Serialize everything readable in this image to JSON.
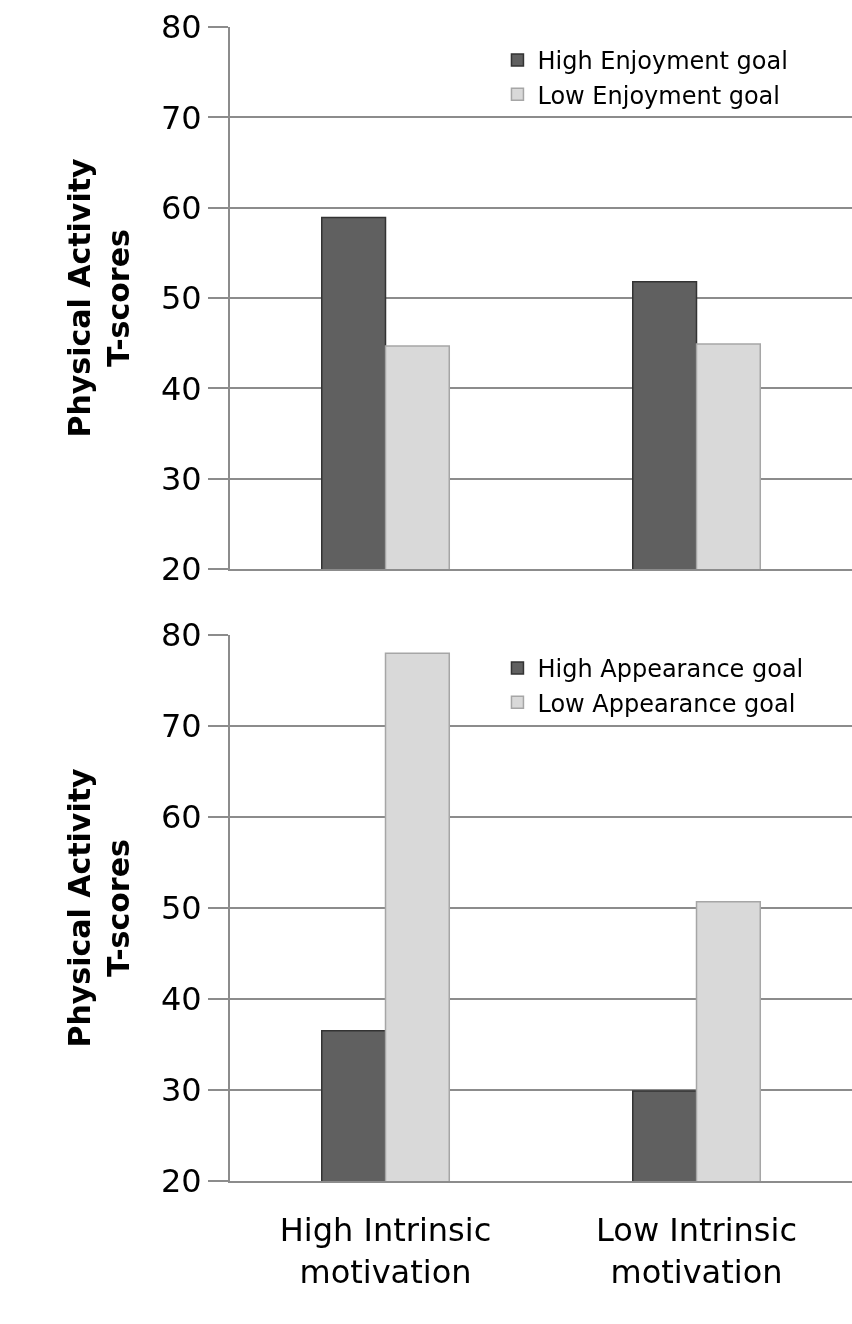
{
  "chart_data": [
    {
      "type": "bar",
      "categories": [
        null,
        null
      ],
      "ylabel": "Physical Activity T-scores",
      "ylim": [
        20,
        80
      ],
      "yticks": [
        20,
        30,
        40,
        50,
        60,
        70,
        80
      ],
      "grid": "y",
      "legend": "top right",
      "tick_labels": "y",
      "series": [
        {
          "name": "High Enjoyment goal",
          "color": "#606060",
          "values": [
            58.9,
            51.8
          ]
        },
        {
          "name": "Low Enjoyment goal",
          "color": "#d9d9d9",
          "values": [
            44.7,
            44.9
          ]
        }
      ]
    },
    {
      "type": "bar",
      "categories": [
        "High Intrinsic motivation",
        "Low Intrinsic motivation"
      ],
      "ylabel": "Physical Activity T-scores",
      "ylim": [
        20,
        80
      ],
      "yticks": [
        20,
        30,
        40,
        50,
        60,
        70,
        80
      ],
      "grid": "y",
      "legend": "top right",
      "series": [
        {
          "name": "High Appearance goal",
          "color": "#606060",
          "values": [
            36.5,
            29.9
          ]
        },
        {
          "name": "Low Appearance goal",
          "color": "#d9d9d9",
          "values": [
            78.0,
            50.7
          ]
        }
      ]
    }
  ]
}
